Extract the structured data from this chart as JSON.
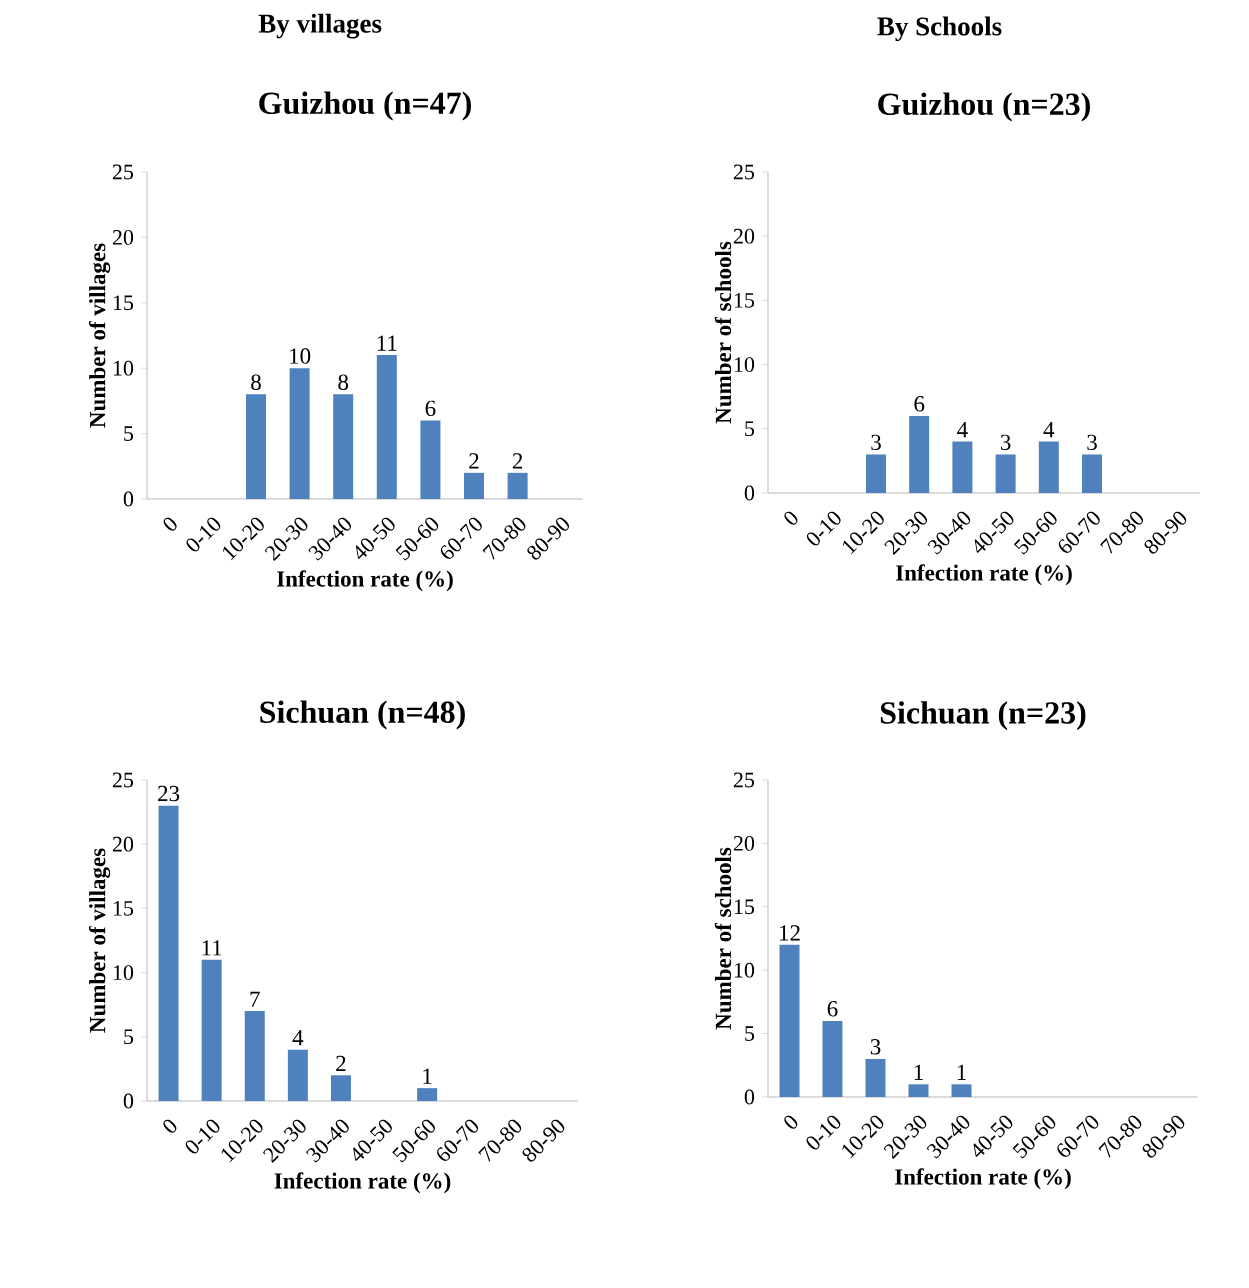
{
  "chart_data": [
    {
      "type": "bar",
      "title": "Guizhou (n=47)",
      "annotations": [
        "By villages"
      ],
      "xlabel": "Infection rate (%)",
      "ylabel": "Number of villages",
      "categories": [
        "0",
        "0-10",
        "10-20",
        "20-30",
        "30-40",
        "40-50",
        "50-60",
        "60-70",
        "70-80",
        "80-90"
      ],
      "values": [
        0,
        0,
        8,
        10,
        8,
        11,
        6,
        2,
        2,
        0
      ],
      "value_labels": [
        null,
        null,
        "8",
        "10",
        "8",
        "11",
        "6",
        "2",
        "2",
        null
      ],
      "color": "#4f81bd",
      "ylim": [
        0,
        25
      ],
      "yticks": [
        0,
        5,
        10,
        15,
        20,
        25
      ],
      "grid": false
    },
    {
      "type": "bar",
      "title": "Guizhou (n=23)",
      "annotations": [
        "By Schools"
      ],
      "xlabel": "Infection rate (%)",
      "ylabel": "Number of schools",
      "categories": [
        "0",
        "0-10",
        "10-20",
        "20-30",
        "30-40",
        "40-50",
        "50-60",
        "60-70",
        "70-80",
        "80-90"
      ],
      "values": [
        0,
        0,
        3,
        6,
        4,
        3,
        4,
        3,
        0,
        0
      ],
      "value_labels": [
        null,
        null,
        "3",
        "6",
        "4",
        "3",
        "4",
        "3",
        null,
        null
      ],
      "color": "#4f81bd",
      "ylim": [
        0,
        25
      ],
      "yticks": [
        0,
        5,
        10,
        15,
        20,
        25
      ],
      "grid": false
    },
    {
      "type": "bar",
      "title": "Sichuan (n=48)",
      "xlabel": "Infection rate (%)",
      "ylabel": "Number of villages",
      "categories": [
        "0",
        "0-10",
        "10-20",
        "20-30",
        "30-40",
        "40-50",
        "50-60",
        "60-70",
        "70-80",
        "80-90"
      ],
      "values": [
        23,
        11,
        7,
        4,
        2,
        0,
        1,
        0,
        0,
        0
      ],
      "value_labels": [
        "23",
        "11",
        "7",
        "4",
        "2",
        null,
        "1",
        null,
        null,
        null
      ],
      "color": "#4f81bd",
      "ylim": [
        0,
        25
      ],
      "yticks": [
        0,
        5,
        10,
        15,
        20,
        25
      ],
      "grid": false
    },
    {
      "type": "bar",
      "title": "Sichuan (n=23)",
      "xlabel": "Infection rate (%)",
      "ylabel": "Number of schools",
      "categories": [
        "0",
        "0-10",
        "10-20",
        "20-30",
        "30-40",
        "40-50",
        "50-60",
        "60-70",
        "70-80",
        "80-90"
      ],
      "values": [
        12,
        6,
        3,
        1,
        1,
        0,
        0,
        0,
        0,
        0
      ],
      "value_labels": [
        "12",
        "6",
        "3",
        "1",
        "1",
        null,
        null,
        null,
        null,
        null
      ],
      "color": "#4f81bd",
      "ylim": [
        0,
        25
      ],
      "yticks": [
        0,
        5,
        10,
        15,
        20,
        25
      ],
      "grid": false
    }
  ]
}
